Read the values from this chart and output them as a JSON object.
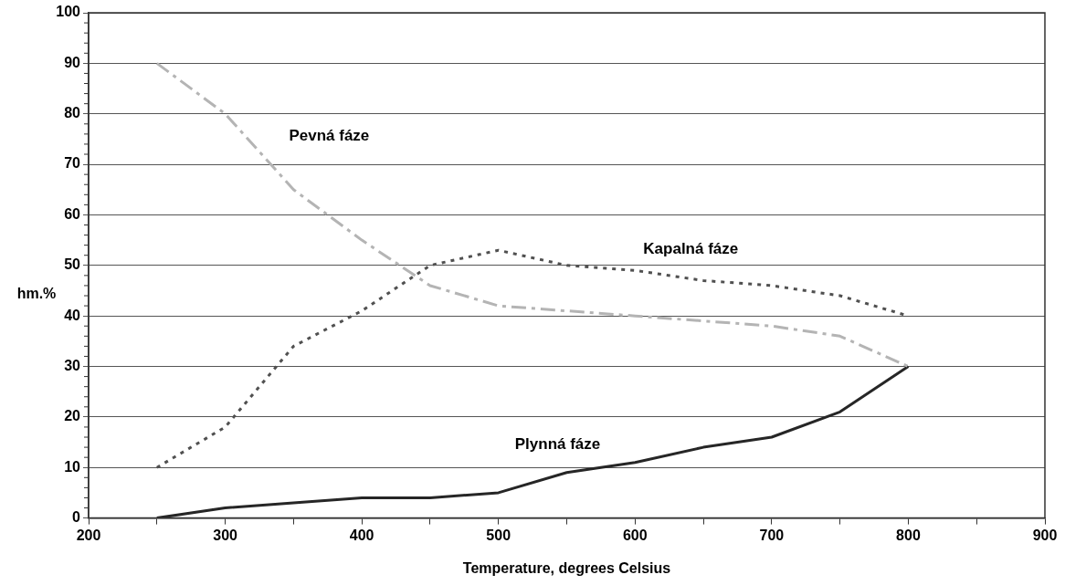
{
  "chart_data": {
    "type": "line",
    "xlabel": "Temperature, degrees Celsius",
    "ylabel": "hm.%",
    "x": [
      250,
      300,
      350,
      400,
      450,
      500,
      550,
      600,
      650,
      700,
      750,
      800
    ],
    "series": [
      {
        "name": "Pevná fáze",
        "color": "#b4b4b4",
        "line_style": "dashed",
        "values": [
          90,
          80,
          65,
          55,
          46,
          42,
          41,
          40,
          39,
          38,
          36,
          30
        ]
      },
      {
        "name": "Kapalná fáze",
        "color": "#505050",
        "line_style": "dotted",
        "values": [
          10,
          18,
          34,
          41,
          50,
          53,
          50,
          49,
          47,
          46,
          44,
          40
        ]
      },
      {
        "name": "Plynná fáze",
        "color": "#262626",
        "line_style": "solid",
        "values": [
          0,
          2,
          3,
          4,
          4,
          5,
          9,
          11,
          14,
          16,
          21,
          30
        ]
      }
    ],
    "xlim": [
      200,
      900
    ],
    "xticks": [
      200,
      {
        "value": 250,
        "label": null
      },
      300,
      {
        "value": 350,
        "label": null
      },
      400,
      {
        "value": 450,
        "label": null
      },
      500,
      {
        "value": 550,
        "label": null
      },
      600,
      {
        "value": 650,
        "label": null
      },
      700,
      {
        "value": 750,
        "label": null
      },
      800,
      {
        "value": 850,
        "label": null
      },
      900
    ],
    "ylim": [
      0,
      100
    ],
    "yticks": [
      0,
      {
        "value": 2,
        "label": null
      },
      {
        "value": 4,
        "label": null
      },
      {
        "value": 6,
        "label": null
      },
      {
        "value": 8,
        "label": null
      },
      10,
      {
        "value": 12,
        "label": null
      },
      {
        "value": 14,
        "label": null
      },
      {
        "value": 16,
        "label": null
      },
      {
        "value": 18,
        "label": null
      },
      20,
      {
        "value": 22,
        "label": null
      },
      {
        "value": 24,
        "label": null
      },
      {
        "value": 26,
        "label": null
      },
      {
        "value": 28,
        "label": null
      },
      30,
      {
        "value": 32,
        "label": null
      },
      {
        "value": 34,
        "label": null
      },
      {
        "value": 36,
        "label": null
      },
      {
        "value": 38,
        "label": null
      },
      40,
      {
        "value": 42,
        "label": null
      },
      {
        "value": 44,
        "label": null
      },
      {
        "value": 46,
        "label": null
      },
      {
        "value": 48,
        "label": null
      },
      50,
      {
        "value": 52,
        "label": null
      },
      {
        "value": 54,
        "label": null
      },
      {
        "value": 56,
        "label": null
      },
      {
        "value": 58,
        "label": null
      },
      60,
      {
        "value": 62,
        "label": null
      },
      {
        "value": 64,
        "label": null
      },
      {
        "value": 66,
        "label": null
      },
      {
        "value": 68,
        "label": null
      },
      70,
      {
        "value": 72,
        "label": null
      },
      {
        "value": 74,
        "label": null
      },
      {
        "value": 76,
        "label": null
      },
      {
        "value": 78,
        "label": null
      },
      80,
      {
        "value": 82,
        "label": null
      },
      {
        "value": 84,
        "label": null
      },
      {
        "value": 86,
        "label": null
      },
      {
        "value": 88,
        "label": null
      },
      90,
      {
        "value": 92,
        "label": null
      },
      {
        "value": 94,
        "label": null
      },
      {
        "value": 96,
        "label": null
      },
      {
        "value": 98,
        "label": null
      },
      100
    ],
    "grid": "y",
    "legend": false,
    "marker": "none"
  }
}
